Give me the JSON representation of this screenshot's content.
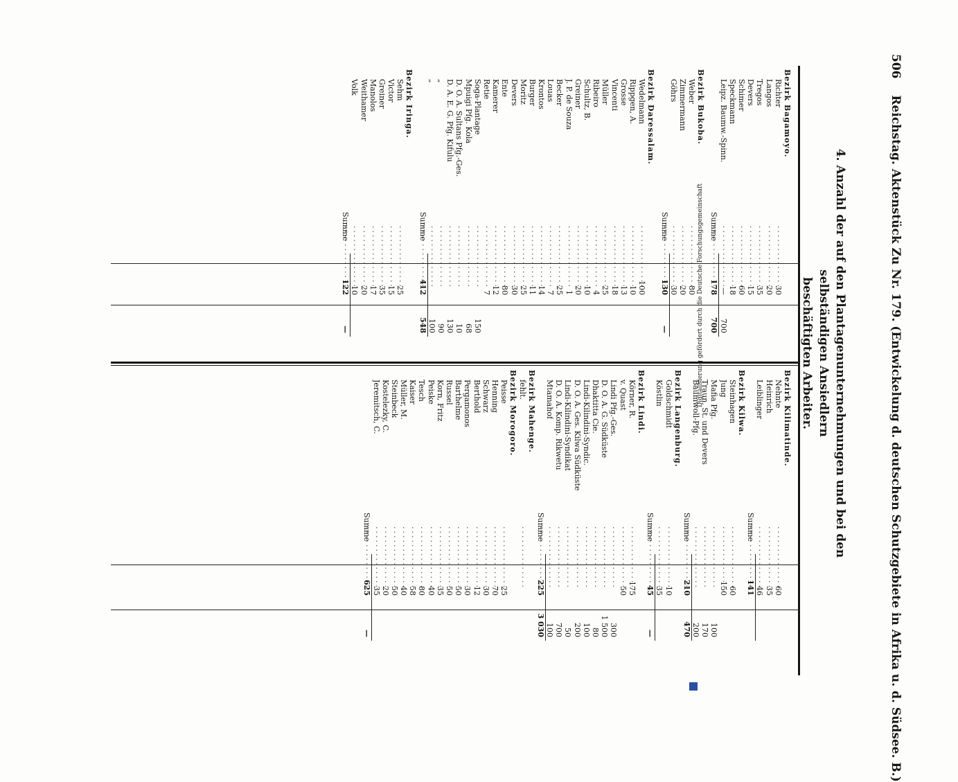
{
  "header": {
    "page": "506",
    "title": "Reichstag. Aktenstück Zu Nr. 179. (Entwickelung d. deutschen Schutzgebiete in Afrika u. d. Südsee. B.)"
  },
  "heading": {
    "line1": "4. Anzahl der auf den Plantagenunternehmungen und bei den selbständigen Ansiedlern",
    "line2": "beschäftigten Arbeiter."
  },
  "left_column": [
    {
      "type": "district",
      "name": "Bezirk Bagamoyo."
    },
    {
      "type": "entry",
      "name": "Richter",
      "v1": "30",
      "v2": ""
    },
    {
      "type": "entry",
      "name": "Langos",
      "v1": "20",
      "v2": ""
    },
    {
      "type": "entry",
      "name": "Tregos",
      "v1": "35",
      "v2": ""
    },
    {
      "type": "entry",
      "name": "Devers",
      "v1": "15",
      "v2": ""
    },
    {
      "type": "entry",
      "name": "Schimer",
      "v1": "60",
      "v2": ""
    },
    {
      "type": "entry",
      "name": "Speckmann",
      "v1": "18",
      "v2": ""
    },
    {
      "type": "entry",
      "name": "Leipz. Baumw.-Spinn.",
      "v1": "—",
      "v2": "700"
    },
    {
      "type": "summe",
      "name": "Summe",
      "v1": "178",
      "v2": "700"
    },
    {
      "type": "blank"
    },
    {
      "type": "district",
      "name": "Bezirk Bukoba."
    },
    {
      "type": "entry",
      "name": "Weber",
      "v1": "80",
      "v2": ""
    },
    {
      "type": "entry",
      "name": "Zimmermann",
      "v1": "20",
      "v2": ""
    },
    {
      "type": "entry",
      "name": "Göhrs",
      "v1": "30",
      "v2": ""
    },
    {
      "type": "summe",
      "name": "Summe",
      "v1": "130",
      "v2": "—"
    },
    {
      "type": "blank"
    },
    {
      "type": "district",
      "name": "Bezirk Daressalam."
    },
    {
      "type": "entry",
      "name": "Wedelmann",
      "v1": "100",
      "v2": ""
    },
    {
      "type": "entry",
      "name": "Rippgen, A.",
      "v1": "10",
      "v2": ""
    },
    {
      "type": "entry",
      "name": "Grosse",
      "v1": "13",
      "v2": ""
    },
    {
      "type": "entry",
      "name": "Vincenti",
      "v1": "18",
      "v2": ""
    },
    {
      "type": "entry",
      "name": "Müller",
      "v1": "25",
      "v2": ""
    },
    {
      "type": "entry",
      "name": "Ribeiro",
      "v1": "4",
      "v2": ""
    },
    {
      "type": "entry",
      "name": "Schultz, B.",
      "v1": "10",
      "v2": ""
    },
    {
      "type": "entry",
      "name": "Greiner",
      "v1": "20",
      "v2": ""
    },
    {
      "type": "entry",
      "name": "J. P. de Souza",
      "v1": "1",
      "v2": ""
    },
    {
      "type": "entry",
      "name": "Becker",
      "v1": "25",
      "v2": ""
    },
    {
      "type": "entry",
      "name": "Louas",
      "v1": "7",
      "v2": ""
    },
    {
      "type": "entry",
      "name": "Krontos",
      "v1": "14",
      "v2": ""
    },
    {
      "type": "entry",
      "name": "Burger",
      "v1": "11",
      "v2": ""
    },
    {
      "type": "entry",
      "name": "Moritz",
      "v1": "25",
      "v2": ""
    },
    {
      "type": "entry",
      "name": "Devers",
      "v1": "30",
      "v2": ""
    },
    {
      "type": "entry",
      "name": "Ente",
      "v1": "80",
      "v2": ""
    },
    {
      "type": "entry",
      "name": "Kamerer",
      "v1": "12",
      "v2": ""
    },
    {
      "type": "entry",
      "name": "Retie",
      "v1": "7",
      "v2": ""
    },
    {
      "type": "entry",
      "name": "Soga-Plantage",
      "v1": "",
      "v2": "150"
    },
    {
      "type": "entry",
      "name": "Mpuigi Pfg. Kola",
      "v1": "",
      "v2": "68"
    },
    {
      "type": "entry",
      "name": "D. O. A. Sultans Pfg.-Ges.",
      "v1": "",
      "v2": "10"
    },
    {
      "type": "entry",
      "name": "D. A. E. G. Pfg. Kifulu",
      "v1": "",
      "v2": "130"
    },
    {
      "type": "entry",
      "name": "„",
      "v1": "",
      "v2": "90"
    },
    {
      "type": "entry",
      "name": "„",
      "v1": "",
      "v2": "100"
    },
    {
      "type": "summe",
      "name": "Summe",
      "v1": "412",
      "v2": "548"
    },
    {
      "type": "blank"
    },
    {
      "type": "district",
      "name": "Bezirk Iringa."
    },
    {
      "type": "entry",
      "name": "Sehm",
      "v1": "25",
      "v2": ""
    },
    {
      "type": "entry",
      "name": "Victor",
      "v1": "15",
      "v2": ""
    },
    {
      "type": "entry",
      "name": "Greiner",
      "v1": "35",
      "v2": ""
    },
    {
      "type": "entry",
      "name": "Manolos",
      "v1": "17",
      "v2": ""
    },
    {
      "type": "entry",
      "name": "Weithamer",
      "v1": "20",
      "v2": ""
    },
    {
      "type": "entry",
      "name": "Volk",
      "v1": "10",
      "v2": ""
    },
    {
      "type": "summe",
      "name": "Summe",
      "v1": "122",
      "v2": "—"
    }
  ],
  "right_column": [
    {
      "type": "district",
      "name": "Bezirk Kilimatinde."
    },
    {
      "type": "entry",
      "name": "Nehnte",
      "v1": "60",
      "v2": ""
    },
    {
      "type": "entry",
      "name": "Heinrich",
      "v1": "35",
      "v2": ""
    },
    {
      "type": "entry",
      "name": "Leiblinger",
      "v1": "46",
      "v2": ""
    },
    {
      "type": "summe",
      "name": "Summe",
      "v1": "141",
      "v2": ""
    },
    {
      "type": "district",
      "name": "Bezirk Kilwa."
    },
    {
      "type": "entry",
      "name": "Steinhagen",
      "v1": "60",
      "v2": ""
    },
    {
      "type": "entry",
      "name": "Jung",
      "v1": "150",
      "v2": ""
    },
    {
      "type": "entry",
      "name": "Mafia Pfg.",
      "v1": "",
      "v2": "100"
    },
    {
      "type": "entry",
      "name": "Traun, St. und Devers",
      "v1": "",
      "v2": "170"
    },
    {
      "type": "entry",
      "name": "Baumwoll-Pfg.",
      "v1": "",
      "v2": "200"
    },
    {
      "type": "summe",
      "name": "Summe",
      "v1": "210",
      "v2": "470"
    },
    {
      "type": "district",
      "name": "Bezirk Langenburg."
    },
    {
      "type": "entry",
      "name": "Goldschmidt",
      "v1": "10",
      "v2": ""
    },
    {
      "type": "entry",
      "name": "Köstlin",
      "v1": "35",
      "v2": ""
    },
    {
      "type": "summe",
      "name": "Summe",
      "v1": "45",
      "v2": "—"
    },
    {
      "type": "district",
      "name": "Bezirk Lindi."
    },
    {
      "type": "entry",
      "name": "Körner, R.",
      "v1": "175",
      "v2": ""
    },
    {
      "type": "entry",
      "name": "v. Quast",
      "v1": "50",
      "v2": ""
    },
    {
      "type": "entry",
      "name": "Lindi Pfg.-Ges.",
      "v1": "",
      "v2": "300"
    },
    {
      "type": "entry",
      "name": "D. O. A. G. Südküste",
      "v1": "",
      "v2": "1 500"
    },
    {
      "type": "entry",
      "name": "Dhaktitta Cie.",
      "v1": "",
      "v2": "80"
    },
    {
      "type": "entry",
      "name": "Lindi-Kilindini-Syndic.",
      "v1": "",
      "v2": "100"
    },
    {
      "type": "entry",
      "name": "D. O. A. Ges. Kilwa Südküste",
      "v1": "",
      "v2": "200"
    },
    {
      "type": "entry",
      "name": "Lindi-Kilindini-Syndikat",
      "v1": "",
      "v2": "50"
    },
    {
      "type": "entry",
      "name": "D. O. A. Komp. Rikwetu",
      "v1": "",
      "v2": "700"
    },
    {
      "type": "entry",
      "name": "Mtamahof",
      "v1": "",
      "v2": "100"
    },
    {
      "type": "summe",
      "name": "Summe",
      "v1": "225",
      "v2": "3 030"
    },
    {
      "type": "district",
      "name": "Bezirk Mahenge."
    },
    {
      "type": "entry",
      "name": "fehlt.",
      "v1": "",
      "v2": ""
    },
    {
      "type": "district",
      "name": "Bezirk Morogoro."
    },
    {
      "type": "entry",
      "name": "Peisse",
      "v1": "25",
      "v2": ""
    },
    {
      "type": "entry",
      "name": "Henning",
      "v1": "70",
      "v2": ""
    },
    {
      "type": "entry",
      "name": "Schwarz",
      "v1": "30",
      "v2": ""
    },
    {
      "type": "entry",
      "name": "Berthold",
      "v1": "12",
      "v2": ""
    },
    {
      "type": "entry",
      "name": "Pergamonos",
      "v1": "30",
      "v2": ""
    },
    {
      "type": "entry",
      "name": "Barthelme",
      "v1": "50",
      "v2": ""
    },
    {
      "type": "entry",
      "name": "Russel",
      "v1": "50",
      "v2": ""
    },
    {
      "type": "entry",
      "name": "Korn, Fritz",
      "v1": "35",
      "v2": ""
    },
    {
      "type": "entry",
      "name": "Peiske",
      "v1": "40",
      "v2": ""
    },
    {
      "type": "entry",
      "name": "Tesch",
      "v1": "80",
      "v2": ""
    },
    {
      "type": "entry",
      "name": "Kaiser",
      "v1": "58",
      "v2": ""
    },
    {
      "type": "entry",
      "name": "Müller, M.",
      "v1": "40",
      "v2": ""
    },
    {
      "type": "entry",
      "name": "Steinbeck",
      "v1": "50",
      "v2": ""
    },
    {
      "type": "entry",
      "name": "Kostelezky, C.",
      "v1": "20",
      "v2": ""
    },
    {
      "type": "entry",
      "name": "Jeremitsch, C.",
      "v1": "35",
      "v2": ""
    },
    {
      "type": "summe",
      "name": "Summe",
      "v1": "625",
      "v2": "—"
    }
  ],
  "side_note": "Digitalisierung gefördert durch die Deutsche Forschungsgemeinschaft"
}
